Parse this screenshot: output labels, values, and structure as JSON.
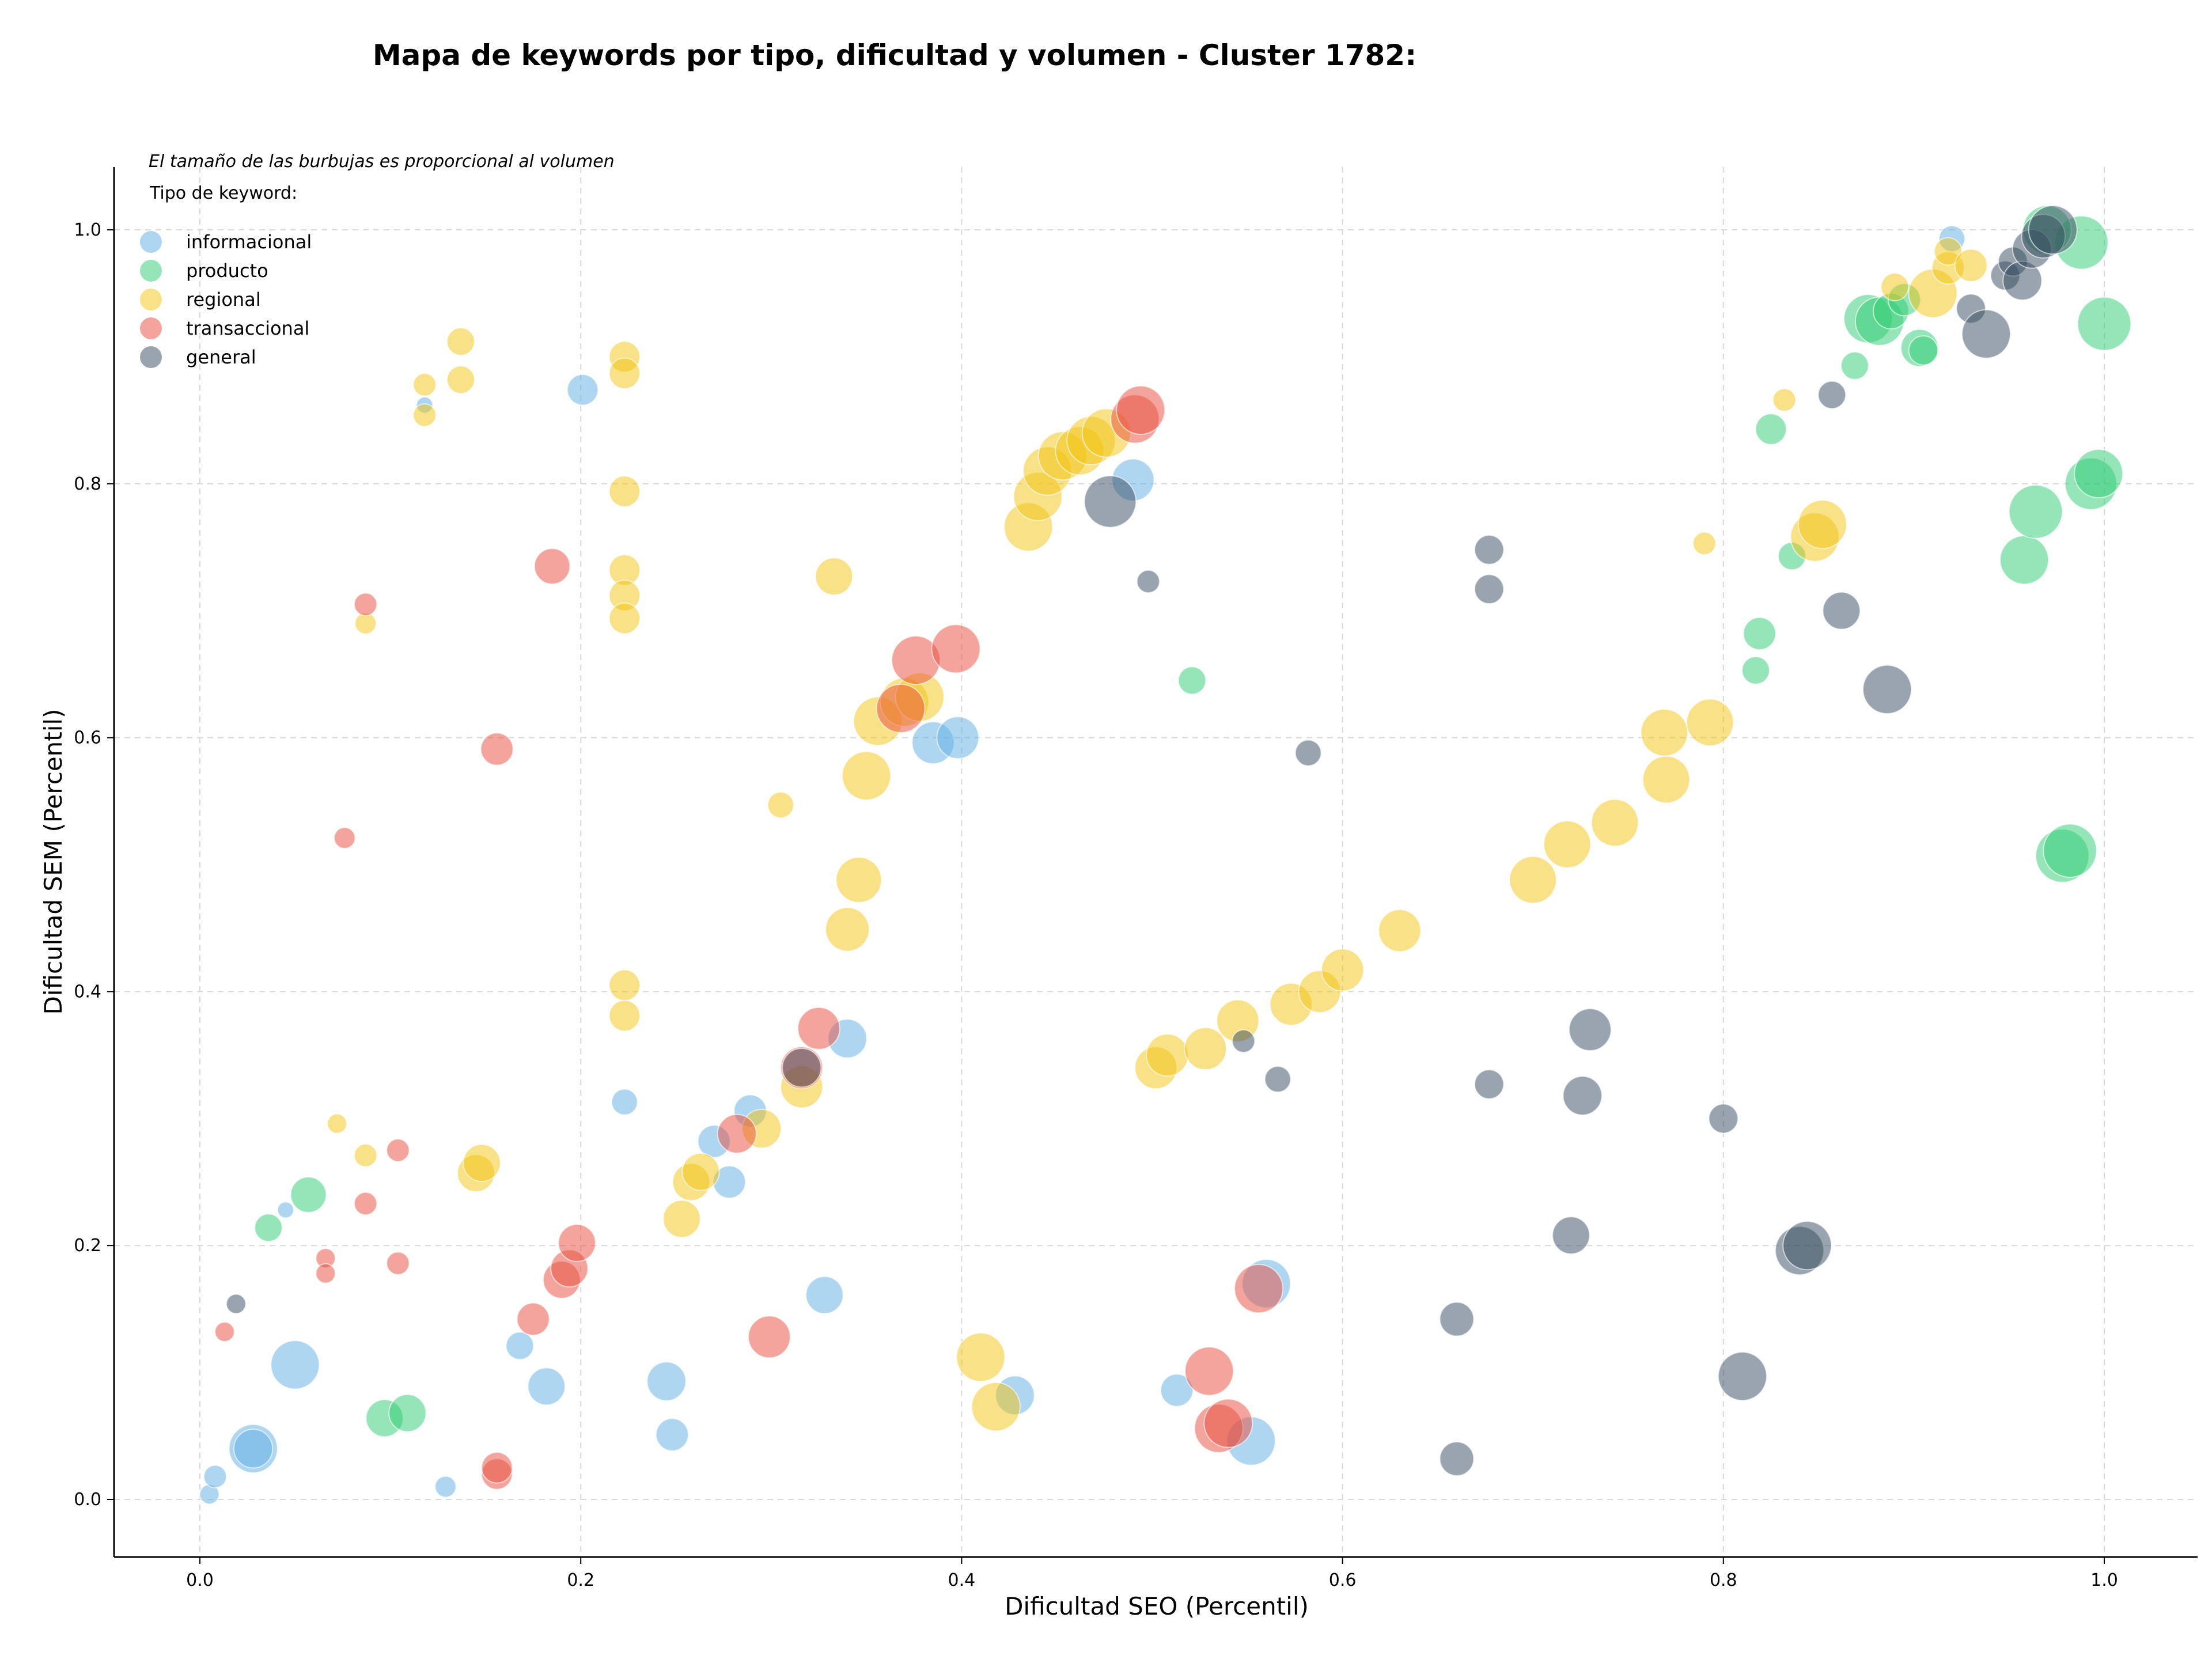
{
  "chart_data": {
    "type": "scatter",
    "subtype": "bubble",
    "title": "Mapa de keywords por tipo, dificultad y volumen - Cluster 1782:",
    "xlabel": "Dificultad SEO (Percentil)",
    "ylabel": "Dificultad SEM (Percentil)",
    "xlim": [
      -0.045,
      1.05
    ],
    "ylim": [
      -0.045,
      1.05
    ],
    "x_ticks": [
      0.0,
      0.2,
      0.4,
      0.6,
      0.8,
      1.0
    ],
    "y_ticks": [
      0.0,
      0.2,
      0.4,
      0.6,
      0.8,
      1.0
    ],
    "x_tick_labels": [
      "0.0",
      "0.2",
      "0.4",
      "0.6",
      "0.8",
      "1.0"
    ],
    "y_tick_labels": [
      "0.0",
      "0.2",
      "0.4",
      "0.6",
      "0.8",
      "1.0"
    ],
    "grid": true,
    "size_note": "El tamaño de las burbujas es proporcional al volumen",
    "legend_title": "Tipo de keyword:",
    "legend_position": "top-left",
    "series": [
      {
        "name": "informacional",
        "color": "#5DADE2",
        "points": [
          [
            0.005,
            0.004,
            1.2
          ],
          [
            0.008,
            0.018,
            1.4
          ],
          [
            0.028,
            0.04,
            3.0
          ],
          [
            0.028,
            0.04,
            2.4
          ],
          [
            0.05,
            0.106,
            3.0
          ],
          [
            0.045,
            0.228,
            1.0
          ],
          [
            0.118,
            0.862,
            1.0
          ],
          [
            0.201,
            0.874,
            1.9
          ],
          [
            0.129,
            0.01,
            1.3
          ],
          [
            0.168,
            0.121,
            1.7
          ],
          [
            0.182,
            0.089,
            2.3
          ],
          [
            0.223,
            0.313,
            1.6
          ],
          [
            0.245,
            0.093,
            2.4
          ],
          [
            0.248,
            0.051,
            2.0
          ],
          [
            0.27,
            0.282,
            2.0
          ],
          [
            0.278,
            0.25,
            2.0
          ],
          [
            0.289,
            0.306,
            2.0
          ],
          [
            0.328,
            0.161,
            2.3
          ],
          [
            0.34,
            0.363,
            2.4
          ],
          [
            0.385,
            0.596,
            2.6
          ],
          [
            0.398,
            0.6,
            2.6
          ],
          [
            0.49,
            0.803,
            2.6
          ],
          [
            0.428,
            0.082,
            2.4
          ],
          [
            0.513,
            0.086,
            2.0
          ],
          [
            0.56,
            0.17,
            3.0
          ],
          [
            0.552,
            0.046,
            3.0
          ],
          [
            0.92,
            0.993,
            1.6
          ]
        ]
      },
      {
        "name": "producto",
        "color": "#2ECC71",
        "points": [
          [
            0.036,
            0.214,
            1.7
          ],
          [
            0.057,
            0.24,
            2.2
          ],
          [
            0.097,
            0.064,
            2.3
          ],
          [
            0.109,
            0.068,
            2.3
          ],
          [
            0.521,
            0.645,
            1.7
          ],
          [
            0.817,
            0.653,
            1.7
          ],
          [
            0.819,
            0.682,
            2.0
          ],
          [
            0.825,
            0.843,
            1.9
          ],
          [
            0.836,
            0.743,
            1.7
          ],
          [
            0.869,
            0.893,
            1.7
          ],
          [
            0.876,
            0.93,
            3.0
          ],
          [
            0.882,
            0.928,
            3.0
          ],
          [
            0.888,
            0.936,
            2.2
          ],
          [
            0.895,
            0.945,
            2.0
          ],
          [
            0.903,
            0.907,
            2.3
          ],
          [
            0.905,
            0.905,
            1.8
          ],
          [
            0.958,
            0.74,
            3.0
          ],
          [
            0.964,
            0.778,
            3.3
          ],
          [
            0.988,
            0.99,
            3.3
          ],
          [
            0.993,
            0.8,
            3.2
          ],
          [
            0.997,
            0.808,
            3.0
          ],
          [
            1.0,
            0.926,
            3.3
          ],
          [
            0.978,
            0.507,
            3.3
          ],
          [
            0.982,
            0.511,
            3.3
          ],
          [
            0.97,
            1.0,
            3.0
          ]
        ]
      },
      {
        "name": "regional",
        "color": "#F1C40F",
        "points": [
          [
            0.072,
            0.296,
            1.2
          ],
          [
            0.087,
            0.271,
            1.4
          ],
          [
            0.087,
            0.69,
            1.3
          ],
          [
            0.118,
            0.878,
            1.4
          ],
          [
            0.118,
            0.854,
            1.4
          ],
          [
            0.137,
            0.912,
            1.7
          ],
          [
            0.137,
            0.882,
            1.7
          ],
          [
            0.145,
            0.257,
            2.3
          ],
          [
            0.148,
            0.265,
            2.3
          ],
          [
            0.223,
            0.9,
            1.9
          ],
          [
            0.223,
            0.887,
            1.9
          ],
          [
            0.223,
            0.794,
            1.9
          ],
          [
            0.223,
            0.732,
            1.9
          ],
          [
            0.223,
            0.712,
            1.9
          ],
          [
            0.223,
            0.694,
            1.9
          ],
          [
            0.223,
            0.405,
            1.9
          ],
          [
            0.223,
            0.381,
            1.9
          ],
          [
            0.253,
            0.221,
            2.3
          ],
          [
            0.258,
            0.25,
            2.3
          ],
          [
            0.263,
            0.258,
            2.3
          ],
          [
            0.295,
            0.292,
            2.4
          ],
          [
            0.305,
            0.547,
            1.6
          ],
          [
            0.316,
            0.325,
            2.6
          ],
          [
            0.333,
            0.727,
            2.3
          ],
          [
            0.34,
            0.449,
            2.7
          ],
          [
            0.346,
            0.488,
            2.8
          ],
          [
            0.35,
            0.57,
            3.0
          ],
          [
            0.356,
            0.613,
            3.0
          ],
          [
            0.37,
            0.628,
            3.0
          ],
          [
            0.378,
            0.632,
            3.0
          ],
          [
            0.41,
            0.112,
            3.0
          ],
          [
            0.418,
            0.073,
            3.0
          ],
          [
            0.435,
            0.766,
            3.0
          ],
          [
            0.44,
            0.79,
            3.0
          ],
          [
            0.445,
            0.81,
            3.0
          ],
          [
            0.453,
            0.822,
            3.0
          ],
          [
            0.462,
            0.826,
            3.0
          ],
          [
            0.468,
            0.834,
            3.0
          ],
          [
            0.476,
            0.84,
            3.0
          ],
          [
            0.502,
            0.34,
            2.6
          ],
          [
            0.508,
            0.35,
            2.6
          ],
          [
            0.528,
            0.355,
            2.6
          ],
          [
            0.545,
            0.377,
            2.6
          ],
          [
            0.573,
            0.39,
            2.6
          ],
          [
            0.588,
            0.4,
            2.6
          ],
          [
            0.6,
            0.417,
            2.6
          ],
          [
            0.63,
            0.448,
            2.6
          ],
          [
            0.7,
            0.488,
            2.9
          ],
          [
            0.718,
            0.516,
            2.9
          ],
          [
            0.743,
            0.533,
            2.9
          ],
          [
            0.769,
            0.604,
            2.9
          ],
          [
            0.77,
            0.567,
            2.9
          ],
          [
            0.793,
            0.612,
            2.9
          ],
          [
            0.79,
            0.753,
            1.4
          ],
          [
            0.832,
            0.866,
            1.4
          ],
          [
            0.848,
            0.758,
            3.0
          ],
          [
            0.852,
            0.768,
            3.0
          ],
          [
            0.89,
            0.955,
            1.7
          ],
          [
            0.91,
            0.95,
            3.0
          ],
          [
            0.918,
            0.97,
            2.0
          ],
          [
            0.918,
            0.983,
            1.7
          ],
          [
            0.93,
            0.972,
            2.0
          ]
        ]
      },
      {
        "name": "transaccional",
        "color": "#E74C3C",
        "points": [
          [
            0.013,
            0.132,
            1.2
          ],
          [
            0.066,
            0.19,
            1.2
          ],
          [
            0.066,
            0.178,
            1.2
          ],
          [
            0.076,
            0.521,
            1.3
          ],
          [
            0.087,
            0.705,
            1.4
          ],
          [
            0.087,
            0.233,
            1.4
          ],
          [
            0.104,
            0.275,
            1.4
          ],
          [
            0.104,
            0.186,
            1.4
          ],
          [
            0.156,
            0.02,
            1.9
          ],
          [
            0.156,
            0.025,
            1.9
          ],
          [
            0.156,
            0.591,
            2.0
          ],
          [
            0.175,
            0.142,
            2.0
          ],
          [
            0.185,
            0.735,
            2.2
          ],
          [
            0.19,
            0.173,
            2.3
          ],
          [
            0.194,
            0.182,
            2.3
          ],
          [
            0.198,
            0.202,
            2.3
          ],
          [
            0.282,
            0.288,
            2.4
          ],
          [
            0.299,
            0.128,
            2.6
          ],
          [
            0.316,
            0.34,
            2.6
          ],
          [
            0.325,
            0.371,
            2.6
          ],
          [
            0.376,
            0.661,
            3.0
          ],
          [
            0.397,
            0.67,
            3.0
          ],
          [
            0.368,
            0.623,
            3.0
          ],
          [
            0.491,
            0.851,
            3.0
          ],
          [
            0.494,
            0.858,
            3.0
          ],
          [
            0.53,
            0.101,
            3.0
          ],
          [
            0.535,
            0.056,
            3.0
          ],
          [
            0.54,
            0.06,
            3.0
          ],
          [
            0.556,
            0.166,
            3.0
          ]
        ]
      },
      {
        "name": "general",
        "color": "#34495E",
        "points": [
          [
            0.019,
            0.154,
            1.2
          ],
          [
            0.316,
            0.34,
            2.4
          ],
          [
            0.478,
            0.786,
            3.2
          ],
          [
            0.498,
            0.723,
            1.4
          ],
          [
            0.548,
            0.361,
            1.4
          ],
          [
            0.566,
            0.331,
            1.6
          ],
          [
            0.582,
            0.588,
            1.6
          ],
          [
            0.66,
            0.142,
            2.1
          ],
          [
            0.66,
            0.032,
            2.1
          ],
          [
            0.677,
            0.748,
            1.8
          ],
          [
            0.677,
            0.717,
            1.8
          ],
          [
            0.677,
            0.327,
            1.8
          ],
          [
            0.72,
            0.208,
            2.3
          ],
          [
            0.726,
            0.318,
            2.4
          ],
          [
            0.73,
            0.37,
            2.6
          ],
          [
            0.8,
            0.3,
            1.8
          ],
          [
            0.81,
            0.097,
            3.0
          ],
          [
            0.84,
            0.196,
            3.0
          ],
          [
            0.844,
            0.2,
            3.0
          ],
          [
            0.857,
            0.87,
            1.7
          ],
          [
            0.862,
            0.7,
            2.3
          ],
          [
            0.886,
            0.638,
            3.0
          ],
          [
            0.93,
            0.938,
            1.8
          ],
          [
            0.938,
            0.918,
            3.0
          ],
          [
            0.948,
            0.964,
            1.8
          ],
          [
            0.952,
            0.975,
            1.8
          ],
          [
            0.957,
            0.96,
            2.4
          ],
          [
            0.962,
            0.985,
            2.4
          ],
          [
            0.968,
            0.995,
            2.7
          ],
          [
            0.973,
            1.0,
            3.0
          ]
        ]
      }
    ]
  }
}
